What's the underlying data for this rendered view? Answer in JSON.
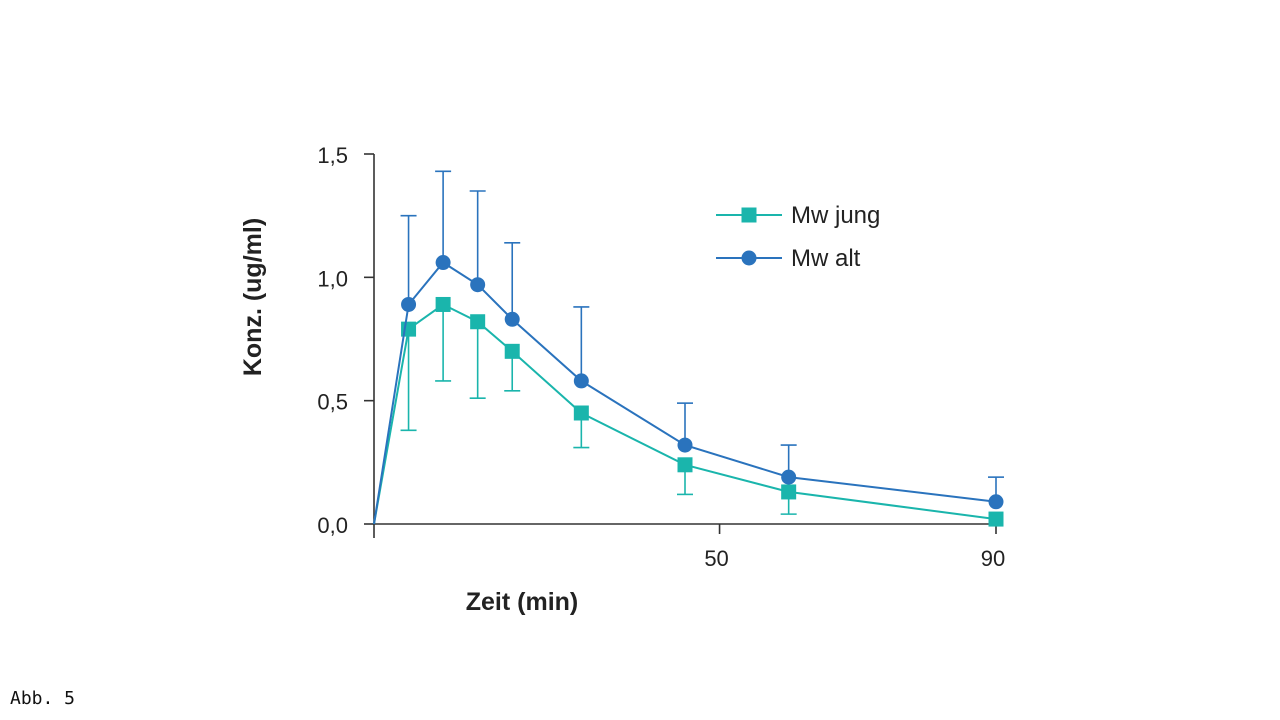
{
  "caption": "Abb. 5",
  "chart_data": {
    "type": "line",
    "xlabel": "Zeit (min)",
    "ylabel": "Konz. (ug/ml)",
    "xlim": [
      0,
      90
    ],
    "ylim": [
      0,
      1.5
    ],
    "x_ticks": [
      {
        "value": 50,
        "label": "50"
      },
      {
        "value": 90,
        "label": "90"
      }
    ],
    "y_ticks": [
      {
        "value": 0,
        "label": "0,0"
      },
      {
        "value": 0.5,
        "label": "0,5"
      },
      {
        "value": 1.0,
        "label": "1,0"
      },
      {
        "value": 1.5,
        "label": "1,5"
      }
    ],
    "grid": false,
    "legend_position": "top-right",
    "series": [
      {
        "name": "Mw jung",
        "color": "#1ab5ac",
        "marker": "square",
        "error_direction": "down",
        "points": [
          {
            "x": 0,
            "y": 0.0,
            "err": null
          },
          {
            "x": 5,
            "y": 0.79,
            "err": 0.41
          },
          {
            "x": 10,
            "y": 0.89,
            "err": 0.31
          },
          {
            "x": 15,
            "y": 0.82,
            "err": 0.31
          },
          {
            "x": 20,
            "y": 0.7,
            "err": 0.16
          },
          {
            "x": 30,
            "y": 0.45,
            "err": 0.14
          },
          {
            "x": 45,
            "y": 0.24,
            "err": 0.12
          },
          {
            "x": 60,
            "y": 0.13,
            "err": 0.09
          },
          {
            "x": 90,
            "y": 0.02,
            "err": null
          }
        ]
      },
      {
        "name": "Mw alt",
        "color": "#2a73bd",
        "marker": "circle",
        "error_direction": "up",
        "points": [
          {
            "x": 0,
            "y": 0.0,
            "err": null
          },
          {
            "x": 5,
            "y": 0.89,
            "err": 0.36
          },
          {
            "x": 10,
            "y": 1.06,
            "err": 0.37
          },
          {
            "x": 15,
            "y": 0.97,
            "err": 0.38
          },
          {
            "x": 20,
            "y": 0.83,
            "err": 0.31
          },
          {
            "x": 30,
            "y": 0.58,
            "err": 0.3
          },
          {
            "x": 45,
            "y": 0.32,
            "err": 0.17
          },
          {
            "x": 60,
            "y": 0.19,
            "err": 0.13
          },
          {
            "x": 90,
            "y": 0.09,
            "err": 0.1
          }
        ]
      }
    ]
  }
}
